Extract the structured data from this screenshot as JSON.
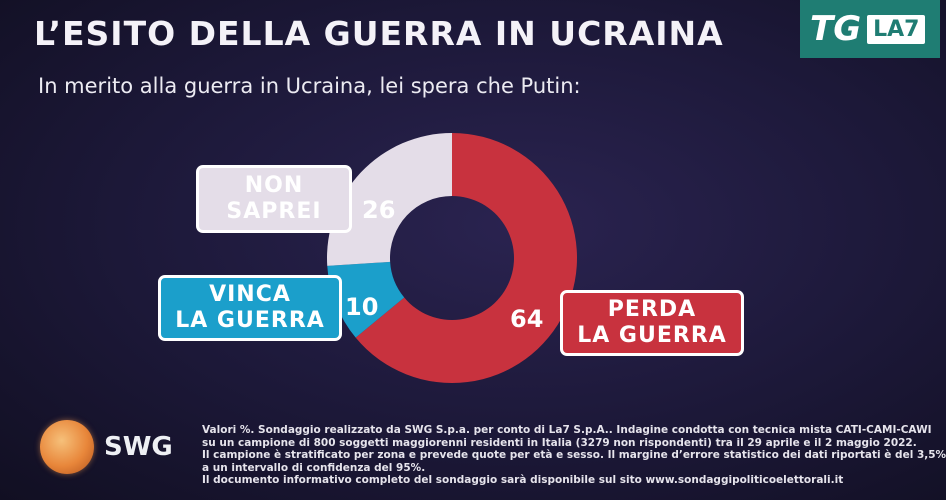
{
  "header": {
    "title": "L’ESITO DELLA GUERRA IN UCRAINA",
    "subtitle": "In merito alla guerra in Ucraina, lei spera che Putin:"
  },
  "logo": {
    "tg": "TG",
    "la7": "LA7"
  },
  "chart_data": {
    "type": "pie",
    "donut": true,
    "categories": [
      "PERDA LA GUERRA",
      "VINCA LA GUERRA",
      "NON SAPREI"
    ],
    "values": [
      64,
      10,
      26
    ],
    "value_labels": [
      "64",
      "10",
      "26"
    ],
    "colors": [
      "#c8323e",
      "#1b9fcb",
      "#e4dde8"
    ],
    "labels": {
      "perda": "PERDA\nLA GUERRA",
      "vinca": "VINCA\nLA GUERRA",
      "nonsaprei": "NON\nSAPREI"
    }
  },
  "source": {
    "brand": "SWG",
    "lines": [
      "Valori %. Sondaggio realizzato da SWG S.p.a. per conto di La7 S.p.A.. Indagine condotta con tecnica mista CATI-CAMI-CAWI",
      "su un campione di 800 soggetti maggiorenni residenti in Italia (3279 non rispondenti) tra il 29 aprile e il 2 maggio 2022.",
      "Il campione è stratificato per zona e prevede quote per età e sesso. Il margine d’errore statistico dei dati riportati è del 3,5%",
      "a un intervallo di confidenza del 95%.",
      "Il documento informativo completo del sondaggio sarà disponibile sul sito www.sondaggipoliticoelettorali.it"
    ]
  }
}
